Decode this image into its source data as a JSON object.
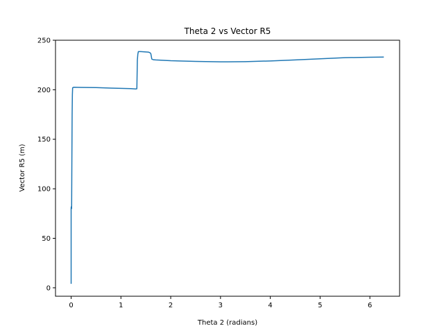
{
  "chart_data": {
    "type": "line",
    "title": "Theta 2 vs Vector R5",
    "xlabel": "Theta 2 (radians)",
    "ylabel": "Vector R5 (m)",
    "xlim": [
      -0.314,
      6.597
    ],
    "ylim": [
      -8.5,
      250
    ],
    "xticks": [
      0,
      1,
      2,
      3,
      4,
      5,
      6
    ],
    "yticks": [
      0,
      50,
      100,
      150,
      200,
      250
    ],
    "grid": false,
    "legend": "none",
    "series": [
      {
        "color": "#1f77b4",
        "x": [
          0.0,
          0.0,
          0.005,
          0.01,
          0.015,
          0.02,
          0.025,
          0.03,
          0.04,
          0.05,
          0.2,
          0.5,
          0.8,
          1.0,
          1.2,
          1.3,
          1.32,
          1.33,
          1.34,
          1.35,
          1.4,
          1.5,
          1.55,
          1.58,
          1.6,
          1.61,
          1.62,
          1.65,
          1.7,
          2.0,
          2.5,
          3.0,
          3.14,
          3.5,
          4.0,
          4.5,
          5.0,
          5.5,
          6.0,
          6.28
        ],
        "y": [
          4,
          81,
          82,
          80,
          130,
          175,
          195,
          202,
          202.3,
          202.5,
          202.4,
          202.2,
          201.7,
          201.4,
          201.1,
          200.8,
          201,
          230,
          236,
          238.5,
          238.5,
          238.2,
          238,
          237.5,
          236.5,
          234,
          231,
          230.3,
          230.1,
          229.3,
          228.6,
          228.2,
          228.2,
          228.4,
          229.1,
          230.1,
          231.3,
          232.4,
          232.8,
          233
        ]
      }
    ]
  }
}
